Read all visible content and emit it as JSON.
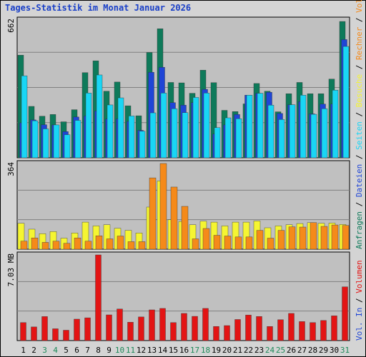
{
  "title": "Tages-Statistik im Monat Januar 2026",
  "colors": {
    "panel_bg": "#c0c0c0",
    "grid": "#808080",
    "anfragen": "#0e7a5a",
    "dateien": "#1f45d6",
    "seiten": "#19d6f5",
    "besuche": "#f5f532",
    "rechner": "#f58a1a",
    "volume": "#e31414",
    "weekend_label": "#1f8a5a",
    "weekday_label": "#000000"
  },
  "chart_data": [
    {
      "type": "bar",
      "panel": "top",
      "ymax_label": "662",
      "ylim": [
        0,
        662
      ],
      "x": [
        "1",
        "2",
        "3",
        "4",
        "5",
        "6",
        "7",
        "8",
        "9",
        "10",
        "11",
        "12",
        "13",
        "14",
        "15",
        "16",
        "17",
        "18",
        "19",
        "20",
        "21",
        "22",
        "23",
        "24",
        "25",
        "26",
        "27",
        "28",
        "29",
        "30",
        "31"
      ],
      "weekend_days": [
        "3",
        "4",
        "10",
        "11",
        "17",
        "18",
        "24",
        "25",
        "31"
      ],
      "series": [
        {
          "name": "Anfragen",
          "color_key": "anfragen",
          "values": [
            493,
            247,
            200,
            208,
            173,
            231,
            409,
            466,
            320,
            364,
            250,
            202,
            506,
            620,
            362,
            360,
            310,
            421,
            361,
            228,
            222,
            259,
            357,
            320,
            221,
            308,
            362,
            308,
            308,
            378,
            655
          ]
        },
        {
          "name": "Dateien",
          "color_key": "dateien",
          "values": [
            168,
            182,
            159,
            158,
            126,
            196,
            201,
            225,
            186,
            187,
            175,
            132,
            411,
            435,
            265,
            253,
            265,
            329,
            114,
            158,
            208,
            301,
            310,
            315,
            213,
            255,
            270,
            211,
            258,
            258,
            568
          ]
        },
        {
          "name": "Seiten",
          "color_key": "seiten",
          "values": [
            394,
            178,
            139,
            158,
            111,
            180,
            311,
            398,
            254,
            288,
            201,
            128,
            216,
            311,
            236,
            217,
            290,
            311,
            145,
            192,
            188,
            301,
            310,
            253,
            184,
            255,
            301,
            209,
            236,
            325,
            535
          ]
        }
      ],
      "legend": [
        "Anfragen",
        "Dateien",
        "Seiten"
      ]
    },
    {
      "type": "bar",
      "panel": "middle",
      "ymax_label": "364",
      "ylim": [
        0,
        364
      ],
      "series": [
        {
          "name": "Besuche",
          "color_key": "besuche",
          "values": [
            110,
            85,
            66,
            75,
            47,
            69,
            115,
            99,
            104,
            89,
            80,
            69,
            179,
            290,
            125,
            118,
            104,
            119,
            115,
            99,
            115,
            115,
            120,
            91,
            99,
            104,
            109,
            113,
            110,
            111,
            105
          ]
        },
        {
          "name": "Rechner",
          "color_key": "rechner",
          "values": [
            34,
            48,
            29,
            34,
            25,
            48,
            34,
            57,
            44,
            56,
            32,
            32,
            303,
            364,
            264,
            182,
            44,
            88,
            59,
            56,
            52,
            52,
            80,
            47,
            80,
            95,
            94,
            113,
            97,
            103,
            101
          ]
        }
      ],
      "legend": [
        "Besuche",
        "Rechner",
        "Vol. Out"
      ]
    },
    {
      "type": "bar",
      "panel": "bottom",
      "ymax_label": "7.03 MB",
      "ylim": [
        0,
        7.03
      ],
      "series": [
        {
          "name": "Volumen",
          "color_key": "volume",
          "values": [
            1.48,
            1.12,
            1.97,
            0.97,
            0.85,
            1.76,
            1.87,
            7.03,
            2.11,
            2.59,
            1.51,
            1.94,
            2.52,
            2.64,
            1.48,
            2.23,
            1.99,
            2.64,
            1.16,
            1.23,
            1.73,
            2.1,
            1.98,
            1.16,
            1.71,
            2.23,
            1.56,
            1.48,
            1.65,
            2.03,
            4.41
          ]
        }
      ],
      "legend": [
        "Volumen",
        "Vol. In"
      ]
    }
  ],
  "right_labels": {
    "top": [
      {
        "text": "Anfragen",
        "color_key": "anfragen"
      },
      {
        "text": "Dateien",
        "color_key": "dateien"
      },
      {
        "text": "Seiten",
        "color_key": "seiten"
      },
      {
        "text": "Besuche",
        "color_key": "besuche"
      },
      {
        "text": "Rechner",
        "color_key": "rechner"
      },
      {
        "text": "Vol. Out",
        "color_key": "rechner"
      }
    ],
    "bottom": [
      {
        "text": "Vol. In",
        "color_key": "dateien"
      },
      {
        "text": "Volumen",
        "color_key": "volume"
      }
    ]
  }
}
